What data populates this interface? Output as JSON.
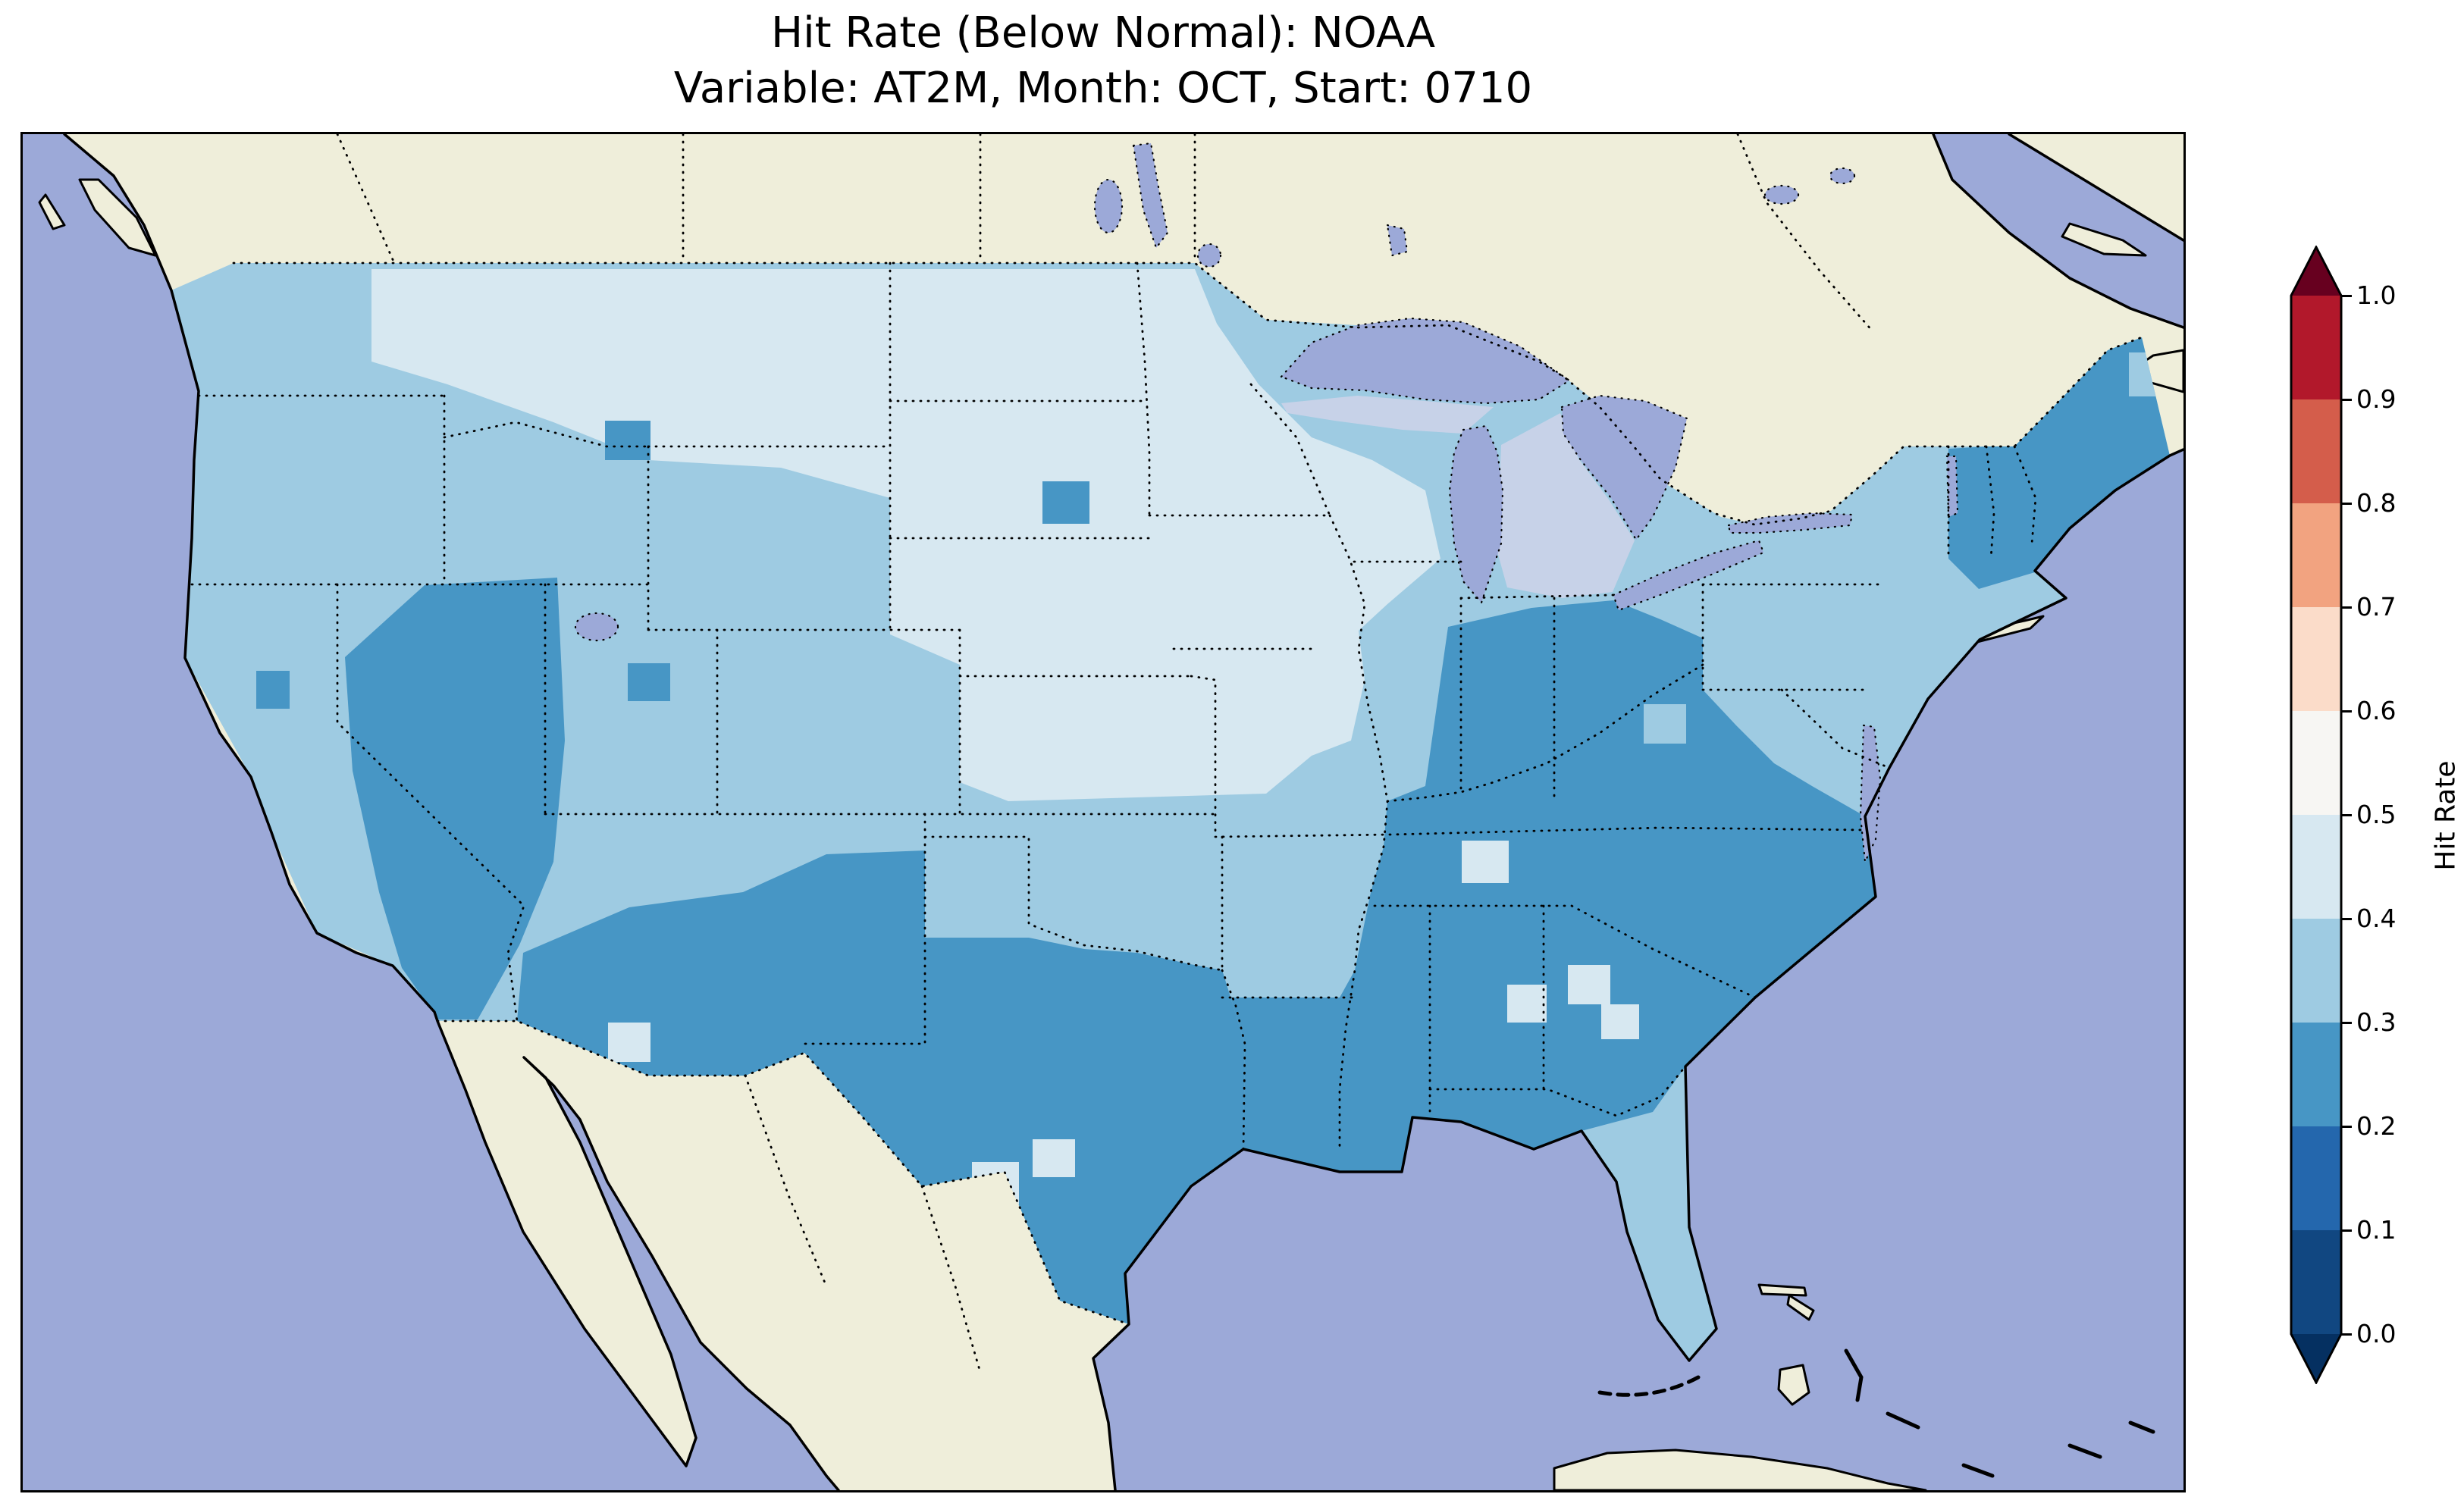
{
  "title": {
    "line1": "Hit Rate (Below Normal): NOAA",
    "line2": "Variable: AT2M, Month: OCT, Start: 0710"
  },
  "colorbar": {
    "label": "Hit Rate",
    "ticks": [
      "0.0",
      "0.1",
      "0.2",
      "0.3",
      "0.4",
      "0.5",
      "0.6",
      "0.7",
      "0.8",
      "0.9",
      "1.0"
    ],
    "under_color": "#053061",
    "over_color": "#67001f",
    "bins": [
      {
        "range": "0.0-0.1",
        "color": "#114781"
      },
      {
        "range": "0.1-0.2",
        "color": "#2467ad"
      },
      {
        "range": "0.2-0.3",
        "color": "#4796c5"
      },
      {
        "range": "0.3-0.4",
        "color": "#9ecbe2"
      },
      {
        "range": "0.4-0.5",
        "color": "#d7e8f1"
      },
      {
        "range": "0.5-0.6",
        "color": "#f7f6f3"
      },
      {
        "range": "0.6-0.7",
        "color": "#fbdcc9"
      },
      {
        "range": "0.7-0.8",
        "color": "#f2a380"
      },
      {
        "range": "0.8-0.9",
        "color": "#d45d4b"
      },
      {
        "range": "0.9-1.0",
        "color": "#b2182b"
      }
    ]
  },
  "map": {
    "colors": {
      "ocean": "#9ca9d8",
      "land": "#efeeda",
      "bin23": "#4796c5",
      "bin34": "#9ecbe2",
      "bin45": "#d7e8f1",
      "michigan": "#c7d2e8",
      "frame": "#000000"
    },
    "regions": [
      {
        "area": "Pacific Northwest (WA/OR/ID)",
        "hit_rate_bin": "0.3-0.4"
      },
      {
        "area": "Northern Plains & Upper Midwest (MT/ND/SD/NE/KS/MN/IA/WI)",
        "hit_rate_bin": "0.4-0.5"
      },
      {
        "area": "Nevada & eastern California",
        "hit_rate_bin": "0.2-0.3"
      },
      {
        "area": "Southwest (southern AZ, NM, most of TX)",
        "hit_rate_bin": "0.2-0.3"
      },
      {
        "area": "Texas panhandle & Oklahoma",
        "hit_rate_bin": "0.3-0.4"
      },
      {
        "area": "Gulf South & Southeast (LA/MS/AL/GA/SC/NC/VA/TN/KY)",
        "hit_rate_bin": "0.2-0.3"
      },
      {
        "area": "Ohio Valley (IN/OH/WV)",
        "hit_rate_bin": "0.2-0.3"
      },
      {
        "area": "Northern New England (VT/NH/MA/ME)",
        "hit_rate_bin": "0.2-0.3"
      },
      {
        "area": "Mid-Atlantic & New York (PA/NY/NJ/MD)",
        "hit_rate_bin": "0.3-0.4"
      },
      {
        "area": "Florida peninsula",
        "hit_rate_bin": "0.3-0.4"
      },
      {
        "area": "Colorado / Utah / Wyoming",
        "hit_rate_bin": "0.3-0.4"
      },
      {
        "area": "Arkansas / southern Missouri",
        "hit_rate_bin": "0.3-0.4"
      }
    ]
  }
}
